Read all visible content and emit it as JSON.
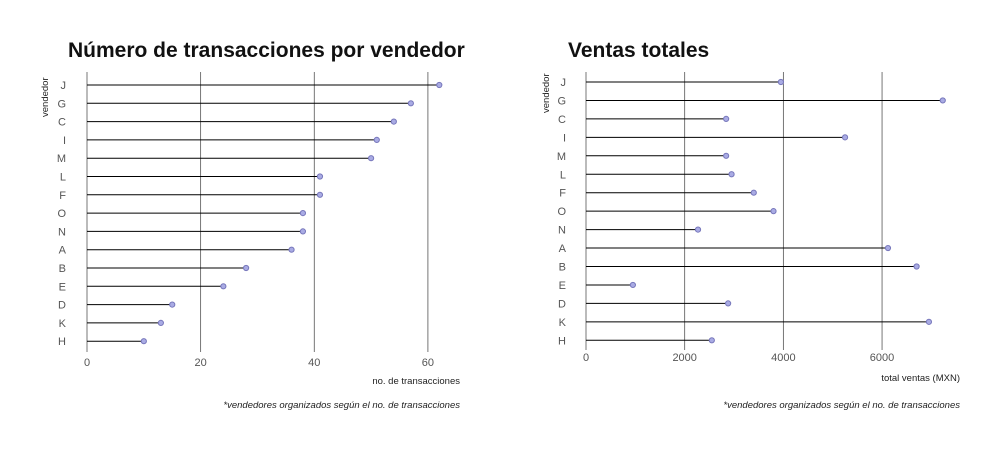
{
  "chart_data": [
    {
      "type": "lollipop",
      "title": "Número de transacciones por vendedor",
      "xlabel": "no. de transacciones",
      "ylabel": "vendedor",
      "note": "*vendedores organizados según el no. de transacciones",
      "categories": [
        "J",
        "G",
        "C",
        "I",
        "M",
        "L",
        "F",
        "O",
        "N",
        "A",
        "B",
        "E",
        "D",
        "K",
        "H"
      ],
      "values": [
        62,
        57,
        54,
        51,
        50,
        41,
        41,
        38,
        38,
        36,
        28,
        24,
        15,
        13,
        10
      ],
      "xlim": [
        0,
        66
      ],
      "xticks": [
        0,
        20,
        40,
        60
      ],
      "grid": true,
      "colors": {
        "marker": "#a9abe4",
        "stem": "#000000",
        "grid": "#555555"
      }
    },
    {
      "type": "lollipop",
      "title": "Ventas totales",
      "xlabel": "total ventas (MXN)",
      "ylabel": "vendedor",
      "note": "*vendedores organizados según el no. de transacciones",
      "categories": [
        "J",
        "G",
        "C",
        "I",
        "M",
        "L",
        "F",
        "O",
        "N",
        "A",
        "B",
        "E",
        "D",
        "K",
        "H"
      ],
      "values": [
        3950,
        7230,
        2840,
        5250,
        2840,
        2950,
        3400,
        3800,
        2270,
        6120,
        6700,
        950,
        2880,
        6950,
        2550
      ],
      "xlim": [
        0,
        7600
      ],
      "xticks": [
        0,
        2000,
        4000,
        6000
      ],
      "grid": true,
      "colors": {
        "marker": "#a9abe4",
        "stem": "#000000",
        "grid": "#555555"
      }
    }
  ]
}
